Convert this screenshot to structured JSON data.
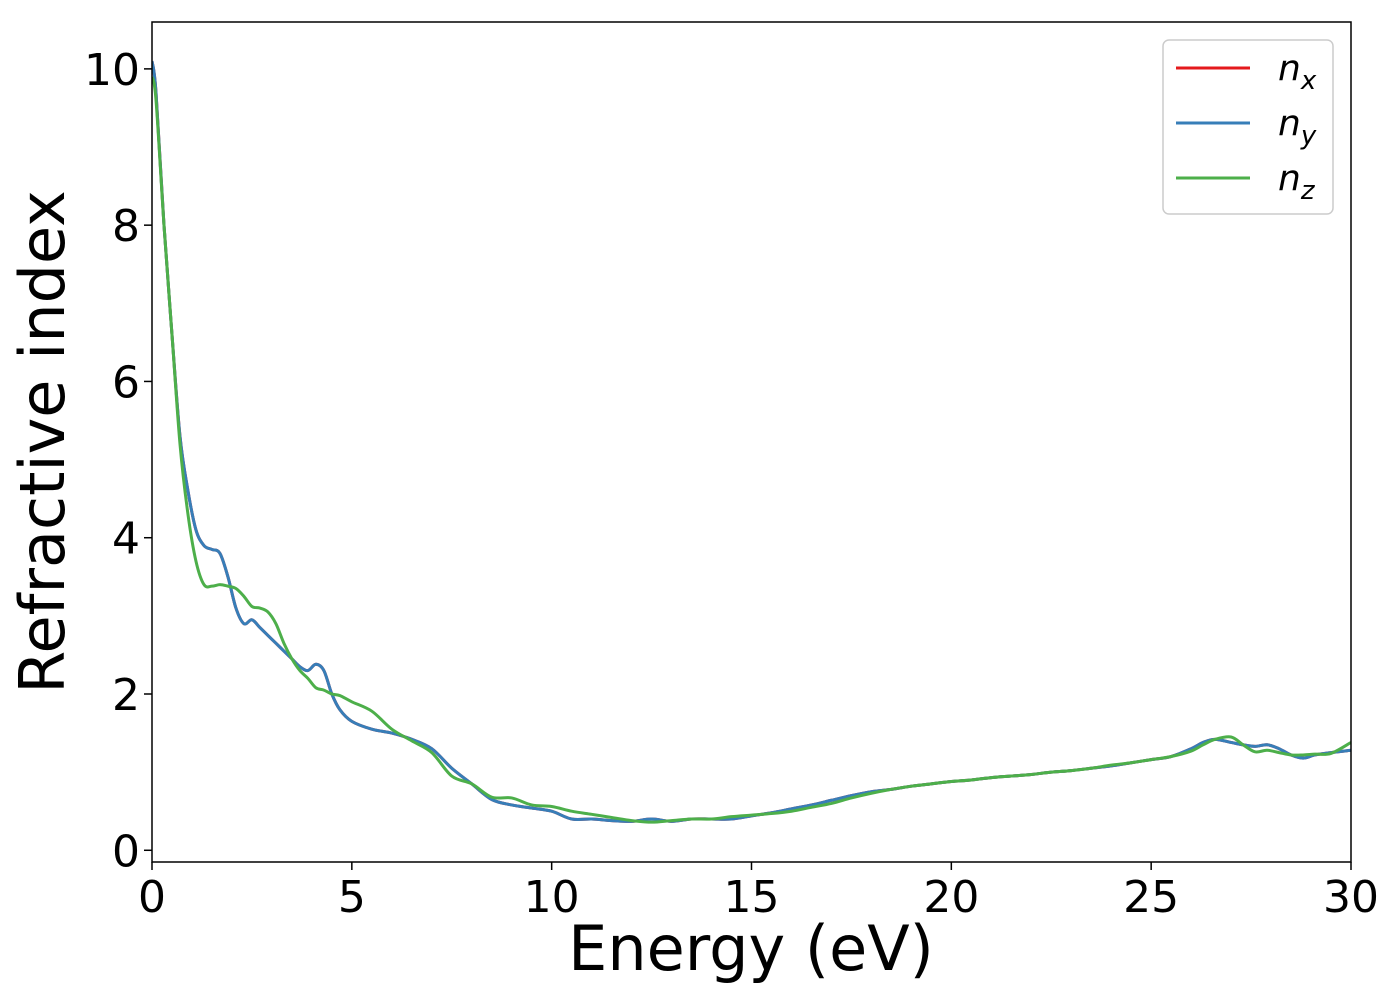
{
  "chart_data": {
    "type": "line",
    "xlabel": "Energy (eV)",
    "ylabel": "Refractive index",
    "xlim": [
      0,
      30
    ],
    "ylim": [
      -0.15,
      10.6
    ],
    "xticks": [
      "0",
      "5",
      "10",
      "15",
      "20",
      "25",
      "30"
    ],
    "yticks": [
      "0",
      "2",
      "4",
      "6",
      "8",
      "10"
    ],
    "grid": false,
    "legend_position": "top-right",
    "series": [
      {
        "name": "n",
        "subscript": "x",
        "color": "#e41a1c",
        "x": [
          0,
          0.1,
          0.3,
          0.5,
          0.7,
          0.9,
          1.1,
          1.3,
          1.5,
          1.7,
          1.9,
          2.1,
          2.3,
          2.5,
          2.7,
          2.9,
          3.1,
          3.3,
          3.5,
          3.7,
          3.9,
          4.1,
          4.3,
          4.5,
          4.7,
          5.0,
          5.5,
          6.0,
          6.5,
          7.0,
          7.5,
          8.0,
          8.5,
          9.0,
          9.5,
          10.0,
          10.5,
          11.0,
          11.5,
          12.0,
          12.5,
          13.0,
          13.5,
          14.0,
          14.5,
          15.0,
          15.5,
          16.0,
          16.5,
          17.0,
          17.5,
          18.0,
          18.5,
          19.0,
          19.5,
          20.0,
          20.5,
          21.0,
          21.5,
          22.0,
          22.5,
          23.0,
          23.5,
          24.0,
          24.5,
          25.0,
          25.5,
          26.0,
          26.3,
          26.6,
          27.0,
          27.3,
          27.6,
          27.9,
          28.2,
          28.5,
          28.8,
          29.1,
          29.5,
          30.0
        ],
        "y": [
          10.1,
          9.7,
          8.0,
          6.6,
          5.3,
          4.6,
          4.1,
          3.9,
          3.85,
          3.8,
          3.5,
          3.1,
          2.9,
          2.95,
          2.85,
          2.75,
          2.65,
          2.55,
          2.45,
          2.35,
          2.3,
          2.38,
          2.3,
          2.0,
          1.8,
          1.65,
          1.55,
          1.5,
          1.42,
          1.3,
          1.05,
          0.85,
          0.65,
          0.58,
          0.54,
          0.5,
          0.4,
          0.4,
          0.38,
          0.37,
          0.4,
          0.37,
          0.4,
          0.4,
          0.4,
          0.44,
          0.48,
          0.53,
          0.58,
          0.64,
          0.7,
          0.75,
          0.78,
          0.82,
          0.85,
          0.88,
          0.9,
          0.93,
          0.95,
          0.97,
          1.0,
          1.02,
          1.05,
          1.08,
          1.12,
          1.16,
          1.2,
          1.3,
          1.38,
          1.42,
          1.38,
          1.35,
          1.33,
          1.35,
          1.3,
          1.22,
          1.18,
          1.22,
          1.25,
          1.28
        ]
      },
      {
        "name": "n",
        "subscript": "y",
        "color": "#377eb8",
        "x": [
          0,
          0.1,
          0.3,
          0.5,
          0.7,
          0.9,
          1.1,
          1.3,
          1.5,
          1.7,
          1.9,
          2.1,
          2.3,
          2.5,
          2.7,
          2.9,
          3.1,
          3.3,
          3.5,
          3.7,
          3.9,
          4.1,
          4.3,
          4.5,
          4.7,
          5.0,
          5.5,
          6.0,
          6.5,
          7.0,
          7.5,
          8.0,
          8.5,
          9.0,
          9.5,
          10.0,
          10.5,
          11.0,
          11.5,
          12.0,
          12.5,
          13.0,
          13.5,
          14.0,
          14.5,
          15.0,
          15.5,
          16.0,
          16.5,
          17.0,
          17.5,
          18.0,
          18.5,
          19.0,
          19.5,
          20.0,
          20.5,
          21.0,
          21.5,
          22.0,
          22.5,
          23.0,
          23.5,
          24.0,
          24.5,
          25.0,
          25.5,
          26.0,
          26.3,
          26.6,
          27.0,
          27.3,
          27.6,
          27.9,
          28.2,
          28.5,
          28.8,
          29.1,
          29.5,
          30.0
        ],
        "y": [
          10.1,
          9.7,
          8.0,
          6.6,
          5.3,
          4.6,
          4.1,
          3.9,
          3.85,
          3.8,
          3.5,
          3.1,
          2.9,
          2.95,
          2.85,
          2.75,
          2.65,
          2.55,
          2.45,
          2.35,
          2.3,
          2.38,
          2.3,
          2.0,
          1.8,
          1.65,
          1.55,
          1.5,
          1.42,
          1.3,
          1.05,
          0.85,
          0.65,
          0.58,
          0.54,
          0.5,
          0.4,
          0.4,
          0.38,
          0.37,
          0.4,
          0.37,
          0.4,
          0.4,
          0.4,
          0.44,
          0.48,
          0.53,
          0.58,
          0.64,
          0.7,
          0.75,
          0.78,
          0.82,
          0.85,
          0.88,
          0.9,
          0.93,
          0.95,
          0.97,
          1.0,
          1.02,
          1.05,
          1.08,
          1.12,
          1.16,
          1.2,
          1.3,
          1.38,
          1.42,
          1.38,
          1.35,
          1.33,
          1.35,
          1.3,
          1.22,
          1.18,
          1.22,
          1.25,
          1.28
        ]
      },
      {
        "name": "n",
        "subscript": "z",
        "color": "#4daf4a",
        "x": [
          0,
          0.1,
          0.3,
          0.5,
          0.7,
          0.9,
          1.1,
          1.3,
          1.5,
          1.7,
          1.9,
          2.1,
          2.3,
          2.5,
          2.7,
          2.9,
          3.1,
          3.3,
          3.5,
          3.7,
          3.9,
          4.1,
          4.3,
          4.5,
          4.7,
          5.0,
          5.5,
          6.0,
          6.5,
          7.0,
          7.5,
          8.0,
          8.5,
          9.0,
          9.5,
          10.0,
          10.5,
          11.0,
          11.5,
          12.0,
          12.5,
          13.0,
          13.5,
          14.0,
          14.5,
          15.0,
          15.5,
          16.0,
          16.5,
          17.0,
          17.5,
          18.0,
          18.5,
          19.0,
          19.5,
          20.0,
          20.5,
          21.0,
          21.5,
          22.0,
          22.5,
          23.0,
          23.5,
          24.0,
          24.5,
          25.0,
          25.5,
          26.0,
          26.3,
          26.6,
          27.0,
          27.3,
          27.6,
          27.9,
          28.2,
          28.5,
          28.8,
          29.1,
          29.5,
          30.0
        ],
        "y": [
          9.9,
          9.6,
          8.0,
          6.6,
          5.2,
          4.3,
          3.7,
          3.4,
          3.38,
          3.4,
          3.38,
          3.35,
          3.25,
          3.12,
          3.1,
          3.05,
          2.9,
          2.65,
          2.45,
          2.3,
          2.2,
          2.08,
          2.05,
          2.0,
          1.98,
          1.9,
          1.78,
          1.55,
          1.4,
          1.25,
          0.95,
          0.85,
          0.68,
          0.67,
          0.58,
          0.56,
          0.5,
          0.46,
          0.42,
          0.38,
          0.36,
          0.38,
          0.4,
          0.4,
          0.43,
          0.45,
          0.47,
          0.5,
          0.55,
          0.6,
          0.67,
          0.73,
          0.78,
          0.82,
          0.85,
          0.88,
          0.9,
          0.93,
          0.95,
          0.97,
          1.0,
          1.02,
          1.05,
          1.09,
          1.12,
          1.16,
          1.2,
          1.27,
          1.35,
          1.42,
          1.45,
          1.35,
          1.26,
          1.28,
          1.25,
          1.22,
          1.22,
          1.23,
          1.24,
          1.38
        ]
      }
    ]
  }
}
